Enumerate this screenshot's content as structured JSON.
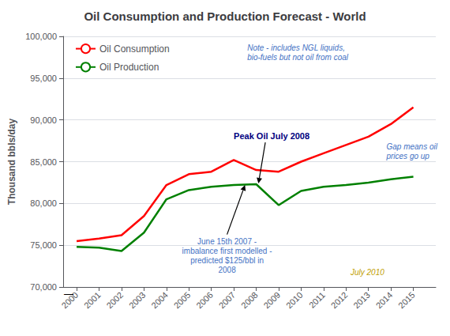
{
  "chart_data": {
    "type": "line",
    "title": "Oil Consumption and Production Forecast - World",
    "ylabel": "Thousand bbls/day",
    "x": [
      2000,
      2001,
      2002,
      2003,
      2004,
      2005,
      2006,
      2007,
      2008,
      2009,
      2010,
      2011,
      2012,
      2013,
      2014,
      2015
    ],
    "series": [
      {
        "name": "Oil Consumption",
        "color": "#FF0000",
        "values": [
          75500,
          75800,
          76200,
          78500,
          82200,
          83500,
          83800,
          85200,
          84000,
          83800,
          85000,
          86000,
          87000,
          88000,
          89500,
          91500
        ]
      },
      {
        "name": "Oil Production",
        "color": "#008000",
        "values": [
          74800,
          74700,
          74300,
          76500,
          80500,
          81600,
          82000,
          82200,
          82300,
          79800,
          81500,
          82000,
          82200,
          82500,
          82900,
          83200
        ]
      }
    ],
    "xlim": [
      1999.4,
      2016.0
    ],
    "xticks": [
      2000,
      2001,
      2002,
      2003,
      2004,
      2005,
      2006,
      2007,
      2008,
      2009,
      2010,
      2011,
      2012,
      2013,
      2014,
      2015
    ],
    "ylim": [
      70000,
      100000
    ],
    "yticks": [
      {
        "value": 70000,
        "label": "70,000"
      },
      {
        "value": 75000,
        "label": "75,000"
      },
      {
        "value": 80000,
        "label": "80,000"
      },
      {
        "value": 85000,
        "label": "85,000"
      },
      {
        "value": 90000,
        "label": "90,000"
      },
      {
        "value": 95000,
        "label": "95,000"
      },
      {
        "value": 100000,
        "label": "100,000"
      }
    ],
    "grid": true,
    "legend": "upper left",
    "annotations": [
      {
        "text": "Note - includes NGL liquids,\nbio-fuels but not oil from coal",
        "color": "#4472C4"
      },
      {
        "text": "June 15th 2007 -\nimbalance first modelled -\npredicted $125/bbl in\n2008",
        "color": "#4472C4"
      },
      {
        "text": "Peak Oil July 2008",
        "color": "#000080"
      },
      {
        "text": "Gap means oil\nprices go up",
        "color": "#4472C4"
      },
      {
        "text": "July 2010",
        "color": "#BFA000"
      },
      {
        "text": "—",
        "color": "#000000"
      }
    ]
  }
}
